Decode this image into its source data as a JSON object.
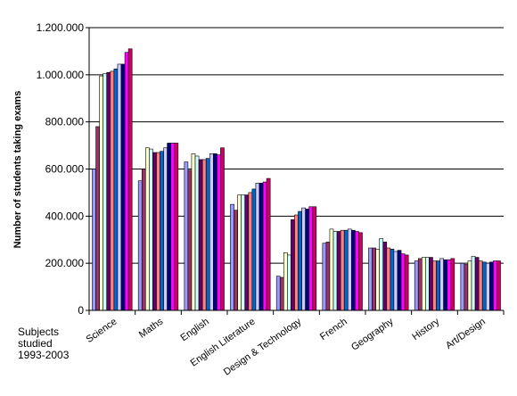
{
  "chart_data": {
    "type": "bar",
    "title": "",
    "ylabel": "Number of students taking exams",
    "xlabel": "",
    "ylim": [
      0,
      1200000
    ],
    "yticks": [
      0,
      200000,
      400000,
      600000,
      800000,
      1000000,
      1200000
    ],
    "ytick_labels": [
      "0",
      "200.000",
      "400.000",
      "600.000",
      "800.000",
      "1.000.000",
      "1.200.000"
    ],
    "grid": true,
    "legend": "none",
    "corner_note_lines": [
      "Subjects",
      "studied",
      "1993-2003"
    ],
    "categories": [
      "Science",
      "Maths",
      "English",
      "English Literature",
      "Design & Technology",
      "French",
      "Geography",
      "History",
      "Art/Design"
    ],
    "series": [
      {
        "color": "#9999ff",
        "values": [
          600000,
          550000,
          630000,
          450000,
          145000,
          285000,
          265000,
          210000,
          200000
        ]
      },
      {
        "color": "#993366",
        "values": [
          780000,
          600000,
          595000,
          425000,
          140000,
          290000,
          265000,
          220000,
          195000
        ]
      },
      {
        "color": "#ffffcc",
        "values": [
          995000,
          690000,
          665000,
          490000,
          245000,
          345000,
          260000,
          225000,
          210000
        ]
      },
      {
        "color": "#ccffff",
        "values": [
          1005000,
          685000,
          655000,
          490000,
          235000,
          335000,
          305000,
          225000,
          230000
        ]
      },
      {
        "color": "#660066",
        "values": [
          1010000,
          670000,
          640000,
          490000,
          385000,
          335000,
          290000,
          225000,
          225000
        ]
      },
      {
        "color": "#ff8080",
        "values": [
          1015000,
          670000,
          640000,
          500000,
          405000,
          340000,
          265000,
          210000,
          210000
        ]
      },
      {
        "color": "#0066cc",
        "values": [
          1025000,
          675000,
          645000,
          515000,
          420000,
          340000,
          260000,
          210000,
          205000
        ]
      },
      {
        "color": "#ccccff",
        "values": [
          1045000,
          690000,
          665000,
          540000,
          435000,
          345000,
          250000,
          220000,
          200000
        ]
      },
      {
        "color": "#000080",
        "values": [
          1045000,
          710000,
          665000,
          540000,
          430000,
          340000,
          255000,
          215000,
          205000
        ]
      },
      {
        "color": "#ff00ff",
        "values": [
          1095000,
          710000,
          660000,
          545000,
          440000,
          335000,
          240000,
          215000,
          210000
        ]
      },
      {
        "color": "#cc0066",
        "values": [
          1110000,
          710000,
          690000,
          560000,
          440000,
          330000,
          235000,
          220000,
          210000
        ]
      }
    ]
  }
}
